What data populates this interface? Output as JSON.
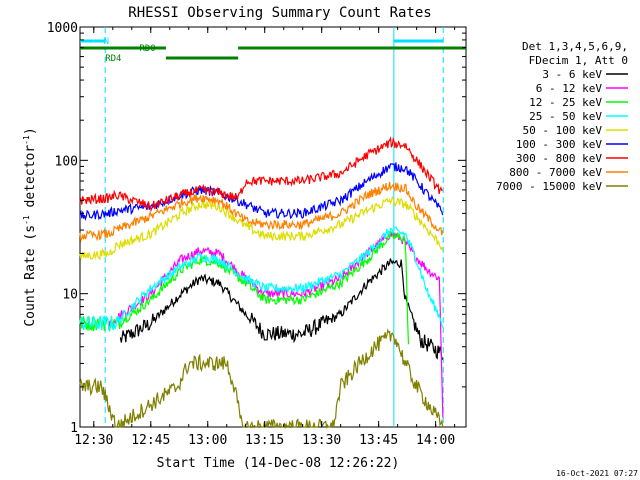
{
  "chart_data": {
    "type": "line",
    "title": "RHESSI Observing Summary Count Rates",
    "xlabel": "Start Time (14-Dec-08 12:26:22)",
    "ylabel_main": "Count Rate (s",
    "ylabel_sup1": "-1",
    "ylabel_mid": " detector",
    "ylabel_sup2": "-1",
    "ylabel_end": ")",
    "y_scale": "log",
    "ylim": [
      1,
      1000
    ],
    "xlim": [
      "12:26:22",
      "14:08:00"
    ],
    "x_ticks": [
      "12:30",
      "12:45",
      "13:00",
      "13:15",
      "13:30",
      "13:45",
      "14:00"
    ],
    "y_ticks": [
      {
        "value": 1,
        "label": "1"
      },
      {
        "value": 10,
        "label": "10"
      },
      {
        "value": 100,
        "label": "100"
      },
      {
        "value": 1000,
        "label": "1000"
      }
    ],
    "legend_placement": "top-right, outside",
    "legend_header": [
      "Det 1,3,4,5,6,9,",
      "FDecim 1, Att 0"
    ],
    "series": [
      {
        "name": "3 - 6 keV",
        "color": "#000000",
        "points": [
          [
            "12:37",
            4.5
          ],
          [
            "12:45",
            6
          ],
          [
            "12:53",
            10
          ],
          [
            "12:58",
            13
          ],
          [
            "13:03",
            12
          ],
          [
            "13:10",
            7
          ],
          [
            "13:15",
            5
          ],
          [
            "13:25",
            5
          ],
          [
            "13:35",
            7
          ],
          [
            "13:42",
            12
          ],
          [
            "13:48",
            17
          ],
          [
            "13:51",
            17
          ],
          [
            "13:52",
            9
          ],
          [
            "13:56",
            4.5
          ],
          [
            "14:02",
            3.5
          ]
        ]
      },
      {
        "name": "6 - 12 keV",
        "color": "#ff00ff",
        "points": [
          [
            "12:34",
            6
          ],
          [
            "12:45",
            10
          ],
          [
            "12:53",
            18
          ],
          [
            "12:58",
            21
          ],
          [
            "13:03",
            20
          ],
          [
            "13:10",
            13
          ],
          [
            "13:15",
            10
          ],
          [
            "13:25",
            10
          ],
          [
            "13:35",
            13
          ],
          [
            "13:42",
            20
          ],
          [
            "13:48",
            28
          ],
          [
            "13:51",
            26
          ],
          [
            "13:54",
            20
          ],
          [
            "13:58",
            15
          ],
          [
            "14:01",
            13
          ],
          [
            "14:02",
            1
          ]
        ]
      },
      {
        "name": "12 - 25 keV",
        "color": "#00ff00",
        "points": [
          [
            "12:26:22",
            6
          ],
          [
            "12:36",
            6
          ],
          [
            "12:40",
            7
          ],
          [
            "12:45",
            9
          ],
          [
            "12:53",
            15
          ],
          [
            "12:58",
            18
          ],
          [
            "13:03",
            17
          ],
          [
            "13:10",
            12
          ],
          [
            "13:15",
            9
          ],
          [
            "13:25",
            9
          ],
          [
            "13:35",
            12
          ],
          [
            "13:42",
            18
          ],
          [
            "13:48",
            27
          ],
          [
            "13:52",
            26
          ],
          [
            "13:53",
            3
          ]
        ]
      },
      {
        "name": "25 - 50 keV",
        "color": "#00ffff",
        "points": [
          [
            "12:26:22",
            6
          ],
          [
            "12:36",
            6
          ],
          [
            "12:40",
            8
          ],
          [
            "12:45",
            11
          ],
          [
            "12:53",
            16
          ],
          [
            "12:58",
            19
          ],
          [
            "13:03",
            18
          ],
          [
            "13:10",
            13
          ],
          [
            "13:15",
            11
          ],
          [
            "13:25",
            11
          ],
          [
            "13:35",
            14
          ],
          [
            "13:42",
            20
          ],
          [
            "13:48",
            30
          ],
          [
            "13:52",
            28
          ],
          [
            "13:55",
            18
          ],
          [
            "13:58",
            10
          ],
          [
            "14:02",
            6
          ]
        ]
      },
      {
        "name": "50 - 100 keV",
        "color": "#dddd00",
        "points": [
          [
            "12:26:22",
            19
          ],
          [
            "12:34",
            20
          ],
          [
            "12:36",
            23
          ],
          [
            "12:45",
            28
          ],
          [
            "12:53",
            40
          ],
          [
            "12:58",
            47
          ],
          [
            "13:03",
            45
          ],
          [
            "13:10",
            32
          ],
          [
            "13:15",
            27
          ],
          [
            "13:25",
            27
          ],
          [
            "13:35",
            33
          ],
          [
            "13:42",
            42
          ],
          [
            "13:48",
            50
          ],
          [
            "13:52",
            47
          ],
          [
            "13:55",
            38
          ],
          [
            "14:02",
            22
          ]
        ]
      },
      {
        "name": "100 - 300 keV",
        "color": "#0000ff",
        "points": [
          [
            "12:26:22",
            38
          ],
          [
            "12:34",
            40
          ],
          [
            "12:36",
            42
          ],
          [
            "12:45",
            45
          ],
          [
            "12:53",
            55
          ],
          [
            "12:58",
            60
          ],
          [
            "13:03",
            57
          ],
          [
            "13:10",
            47
          ],
          [
            "13:15",
            40
          ],
          [
            "13:25",
            40
          ],
          [
            "13:35",
            50
          ],
          [
            "13:42",
            70
          ],
          [
            "13:48",
            90
          ],
          [
            "13:52",
            88
          ],
          [
            "13:55",
            70
          ],
          [
            "14:02",
            40
          ]
        ]
      },
      {
        "name": "300 - 800 keV",
        "color": "#ff0000",
        "points": [
          [
            "12:26:22",
            50
          ],
          [
            "12:34",
            52
          ],
          [
            "12:36",
            55
          ],
          [
            "12:45",
            45
          ],
          [
            "12:53",
            55
          ],
          [
            "12:58",
            60
          ],
          [
            "13:03",
            57
          ],
          [
            "13:08",
            52
          ],
          [
            "13:10",
            70
          ],
          [
            "13:25",
            70
          ],
          [
            "13:35",
            80
          ],
          [
            "13:42",
            110
          ],
          [
            "13:48",
            135
          ],
          [
            "13:52",
            130
          ],
          [
            "13:55",
            100
          ],
          [
            "14:02",
            55
          ]
        ]
      },
      {
        "name": "800 - 7000 keV",
        "color": "#ff8000",
        "points": [
          [
            "12:26:22",
            27
          ],
          [
            "12:34",
            28
          ],
          [
            "12:36",
            30
          ],
          [
            "12:45",
            38
          ],
          [
            "12:53",
            48
          ],
          [
            "12:58",
            53
          ],
          [
            "13:03",
            50
          ],
          [
            "13:10",
            35
          ],
          [
            "13:15",
            33
          ],
          [
            "13:25",
            33
          ],
          [
            "13:35",
            40
          ],
          [
            "13:42",
            55
          ],
          [
            "13:48",
            65
          ],
          [
            "13:52",
            62
          ],
          [
            "13:55",
            45
          ],
          [
            "14:02",
            28
          ]
        ]
      },
      {
        "name": "7000 - 15000 keV",
        "color": "#808000",
        "points": [
          [
            "12:26:22",
            2
          ],
          [
            "12:32",
            2
          ],
          [
            "12:36",
            1
          ],
          [
            "12:52",
            2
          ],
          [
            "12:55",
            3
          ],
          [
            "13:05",
            3
          ],
          [
            "13:07",
            2
          ],
          [
            "13:09",
            1
          ],
          [
            "13:33",
            1
          ],
          [
            "13:35",
            2
          ],
          [
            "13:40",
            3
          ],
          [
            "13:44",
            4
          ],
          [
            "13:49",
            5
          ],
          [
            "13:52",
            3
          ],
          [
            "13:55",
            2
          ],
          [
            "14:02",
            1
          ]
        ]
      }
    ],
    "flags": {
      "N": "N",
      "RD0": "RD0",
      "RD4": "RD4"
    }
  },
  "footer": {
    "timestamp": "16-Oct-2021 07:27"
  }
}
